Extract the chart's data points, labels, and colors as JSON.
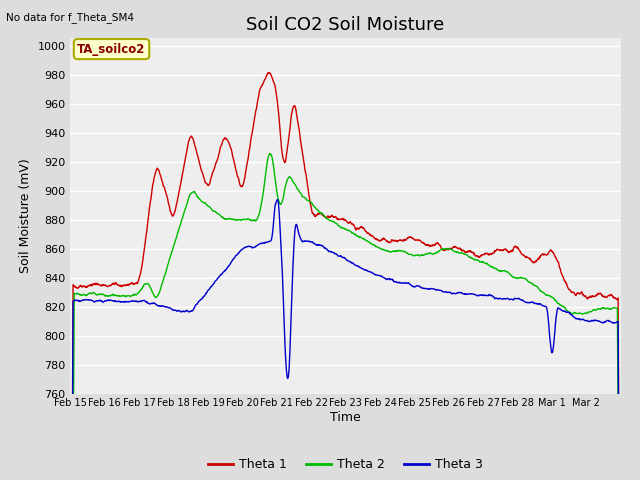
{
  "title": "Soil CO2 Soil Moisture",
  "top_left_text": "No data for f_Theta_SM4",
  "annotation_box": "TA_soilco2",
  "ylabel": "Soil Moisture (mV)",
  "xlabel": "Time",
  "ylim": [
    760,
    1005
  ],
  "yticks": [
    760,
    780,
    800,
    820,
    840,
    860,
    880,
    900,
    920,
    940,
    960,
    980,
    1000
  ],
  "x_labels": [
    "Feb 15",
    "Feb 16",
    "Feb 17",
    "Feb 18",
    "Feb 19",
    "Feb 20",
    "Feb 21",
    "Feb 22",
    "Feb 23",
    "Feb 24",
    "Feb 25",
    "Feb 26",
    "Feb 27",
    "Feb 28",
    "Mar 1",
    "Mar 2"
  ],
  "line_colors": [
    "#cc0000",
    "#00bb00",
    "#0000cc"
  ],
  "line_names": [
    "Theta 1",
    "Theta 2",
    "Theta 3"
  ],
  "background_color": "#dddddd",
  "plot_bg_color": "#eeeeee",
  "grid_color": "#ffffff",
  "title_fontsize": 13,
  "axis_fontsize": 9,
  "tick_fontsize": 8
}
